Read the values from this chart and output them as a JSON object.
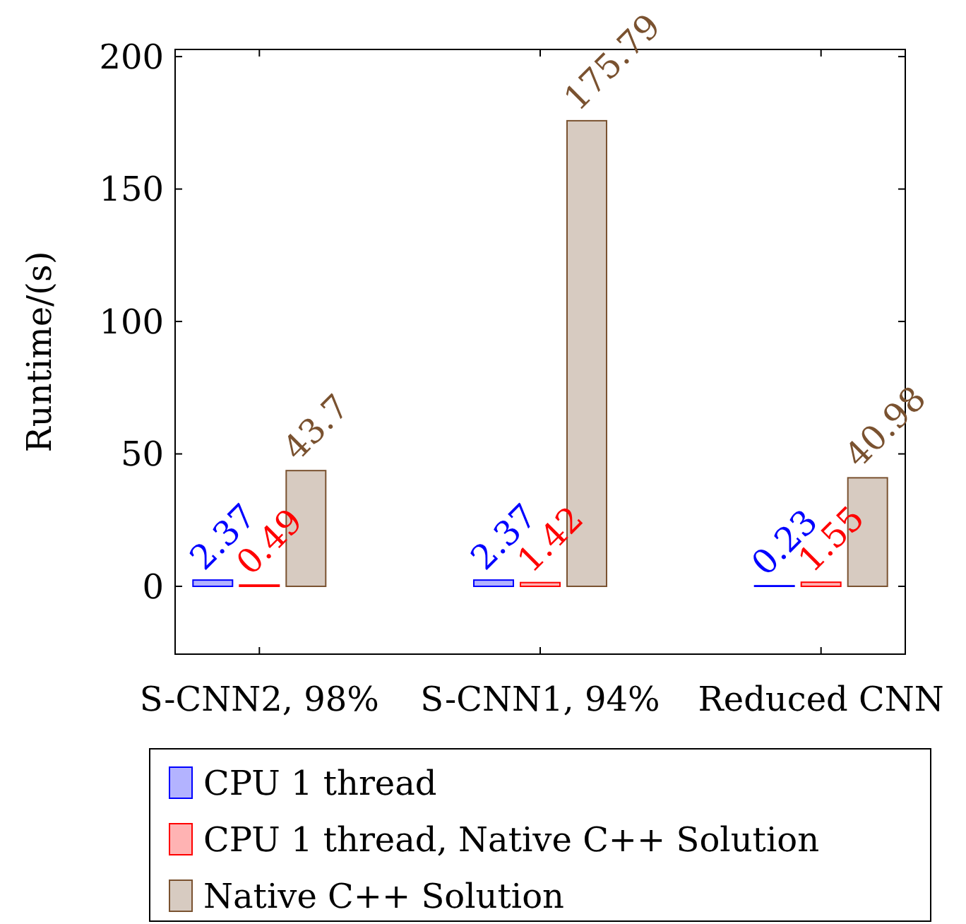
{
  "chart_data": {
    "type": "bar",
    "ylabel": "Runtime/(s)",
    "categories": [
      "S-CNN2, 98%",
      "S-CNN1, 94%",
      "Reduced CNN"
    ],
    "series": [
      {
        "name": "CPU 1 thread",
        "color": "#0000ff",
        "values": [
          2.37,
          2.37,
          0.23
        ]
      },
      {
        "name": "CPU 1 thread, Native C++ Solution",
        "color": "#ff0000",
        "values": [
          0.49,
          1.42,
          1.55
        ]
      },
      {
        "name": "Native C++ Solution",
        "color": "#7a5230",
        "values": [
          43.7,
          175.79,
          40.98
        ]
      }
    ],
    "ylim": [
      -25.6,
      202.7
    ],
    "yticks": [
      0,
      50,
      100,
      150,
      200
    ],
    "data_labels": true,
    "legend": "bottom",
    "grid": false
  }
}
